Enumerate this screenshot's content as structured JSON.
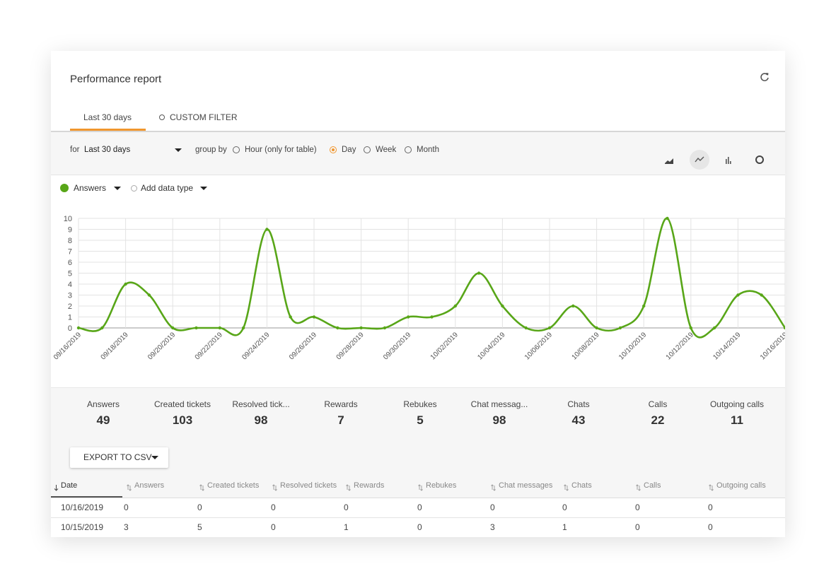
{
  "header": {
    "title": "Performance report"
  },
  "tabs": {
    "items": [
      "Last 30 days",
      "CUSTOM FILTER"
    ],
    "active": 0
  },
  "toolbar": {
    "for_label": "for",
    "period": "Last 30 days",
    "group_by_label": "group by",
    "options": [
      "Hour (only for table)",
      "Day",
      "Week",
      "Month"
    ],
    "selected": 1
  },
  "data_types": {
    "add": "Add data type"
  },
  "chart_data": {
    "type": "line",
    "categories": [
      "09/16/2019",
      null,
      "09/18/2019",
      null,
      "09/20/2019",
      null,
      "09/22/2019",
      null,
      "09/24/2019",
      null,
      "09/26/2019",
      null,
      "09/28/2019",
      null,
      "09/30/2019",
      null,
      "10/02/2019",
      null,
      "10/04/2019",
      null,
      "10/06/2019",
      null,
      "10/08/2019",
      null,
      "10/10/2019",
      null,
      "10/12/2019",
      null,
      "10/14/2019",
      null,
      "10/16/2019"
    ],
    "series": [
      {
        "name": "Answers",
        "color": "#58a618",
        "values": [
          0,
          0,
          4,
          3,
          0,
          0,
          0,
          0,
          9,
          1,
          1,
          0,
          0,
          0,
          1,
          1,
          2,
          5,
          2,
          0,
          0,
          2,
          0,
          0,
          2,
          10,
          0,
          0,
          3,
          3,
          0
        ]
      }
    ],
    "ylim": [
      0,
      10
    ],
    "yticks": [
      0,
      1,
      2,
      3,
      4,
      5,
      6,
      7,
      8,
      9,
      10
    ],
    "grid": true
  },
  "stats": [
    {
      "label": "Answers",
      "value": 49
    },
    {
      "label": "Created tickets",
      "value": 103
    },
    {
      "label": "Resolved tick...",
      "value": 98
    },
    {
      "label": "Rewards",
      "value": 7
    },
    {
      "label": "Rebukes",
      "value": 5
    },
    {
      "label": "Chat messag...",
      "value": 98
    },
    {
      "label": "Chats",
      "value": 43
    },
    {
      "label": "Calls",
      "value": 22
    },
    {
      "label": "Outgoing calls",
      "value": 11
    }
  ],
  "export_button": "EXPORT TO CSV",
  "table": {
    "columns": [
      "Date",
      "Answers",
      "Created tickets",
      "Resolved tickets",
      "Rewards",
      "Rebukes",
      "Chat messages",
      "Chats",
      "Calls",
      "Outgoing calls"
    ],
    "rows": [
      [
        "10/16/2019",
        0,
        0,
        0,
        0,
        0,
        0,
        0,
        0,
        0
      ],
      [
        "10/15/2019",
        3,
        5,
        0,
        1,
        0,
        3,
        1,
        0,
        0
      ]
    ]
  }
}
